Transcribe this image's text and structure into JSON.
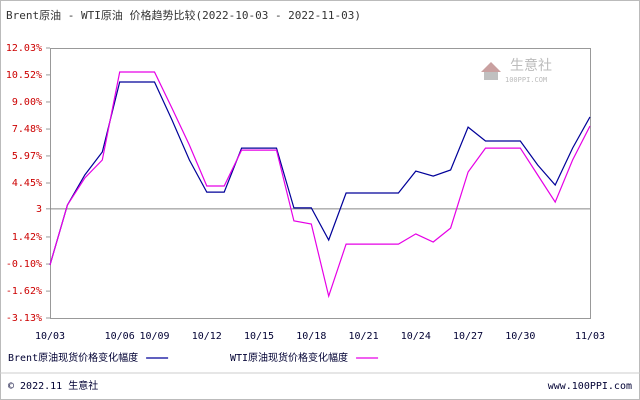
{
  "chart_data": {
    "type": "line",
    "title": "Brent原油 - WTI原油 价格趋势比较(2022-10-03 - 2022-11-03)",
    "categories": [
      "10/03",
      null,
      null,
      null,
      "10/06",
      null,
      "10/09",
      null,
      null,
      "10/12",
      null,
      null,
      "10/15",
      null,
      null,
      "10/18",
      null,
      null,
      "10/21",
      null,
      null,
      "10/24",
      null,
      null,
      "10/27",
      null,
      null,
      "10/30",
      null,
      null,
      null,
      "11/03"
    ],
    "series": [
      {
        "name": "Brent原油现货价格变化幅度",
        "color": "#000099",
        "values": [
          -0.15,
          3.21,
          4.9,
          6.19,
          10.12,
          10.12,
          10.12,
          8.0,
          5.74,
          3.94,
          3.94,
          6.41,
          6.41,
          6.41,
          3.05,
          3.05,
          1.25,
          3.89,
          3.89,
          3.89,
          3.89,
          5.12,
          4.84,
          5.18,
          7.59,
          6.81,
          6.81,
          6.81,
          5.46,
          4.34,
          6.41,
          8.16
        ]
      },
      {
        "name": "WTI原油现货价格变化幅度",
        "color": "#e600e6",
        "values": [
          -0.15,
          3.21,
          4.73,
          5.74,
          10.68,
          10.68,
          10.68,
          8.66,
          6.58,
          4.28,
          4.28,
          6.3,
          6.3,
          6.3,
          2.32,
          2.15,
          -1.9,
          1.02,
          1.02,
          1.02,
          1.02,
          1.59,
          1.14,
          1.92,
          5.07,
          6.41,
          6.41,
          6.41,
          4.9,
          3.38,
          5.74,
          7.65
        ]
      }
    ],
    "ylim": [
      -3.13,
      12.03
    ],
    "yticks": [
      {
        "value": 12.03,
        "label": "12.03%"
      },
      {
        "value": 10.52,
        "label": "10.52%"
      },
      {
        "value": 9.0,
        "label": "9.00%"
      },
      {
        "value": 7.48,
        "label": "7.48%"
      },
      {
        "value": 5.97,
        "label": "5.97%"
      },
      {
        "value": 4.45,
        "label": "4.45%"
      },
      3,
      {
        "value": 1.42,
        "label": "1.42%"
      },
      {
        "value": -0.1,
        "label": "-0.10%"
      },
      {
        "value": -1.62,
        "label": "-1.62%"
      },
      {
        "value": -3.13,
        "label": "-3.13%"
      }
    ],
    "baseline": 3,
    "watermark": "生意社",
    "watermark_sub": "100PPI.COM",
    "footer_left": "© 2022.11 生意社",
    "footer_right": "www.100PPI.com"
  }
}
